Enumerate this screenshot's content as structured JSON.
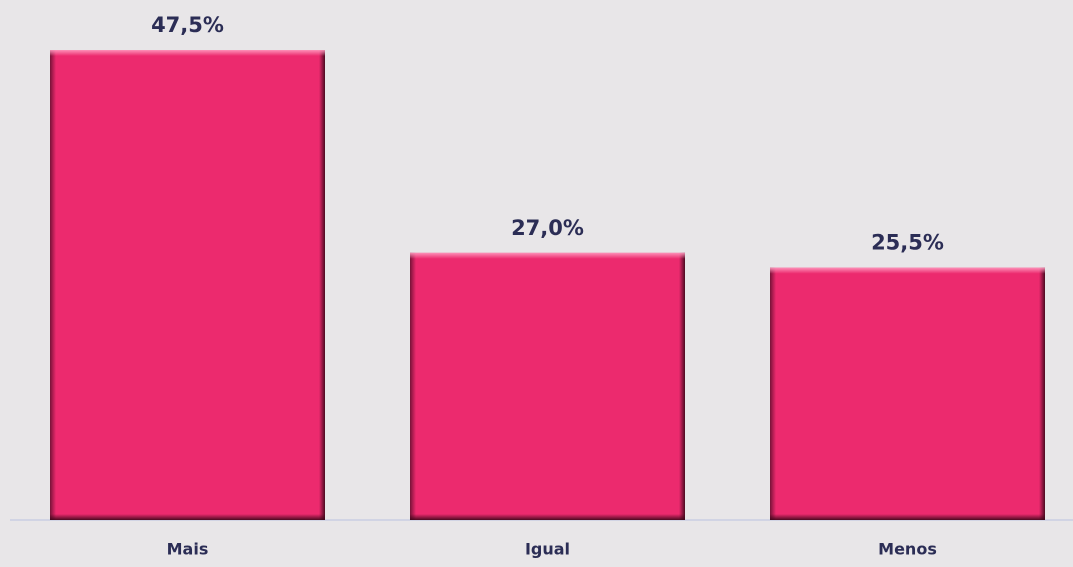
{
  "chart_data": {
    "type": "bar",
    "categories": [
      "Mais",
      "Igual",
      "Menos"
    ],
    "values": [
      47.5,
      27.0,
      25.5
    ],
    "value_labels": [
      "47,5%",
      "27,0%",
      "25,5%"
    ],
    "color": "#ec2a6e"
  }
}
